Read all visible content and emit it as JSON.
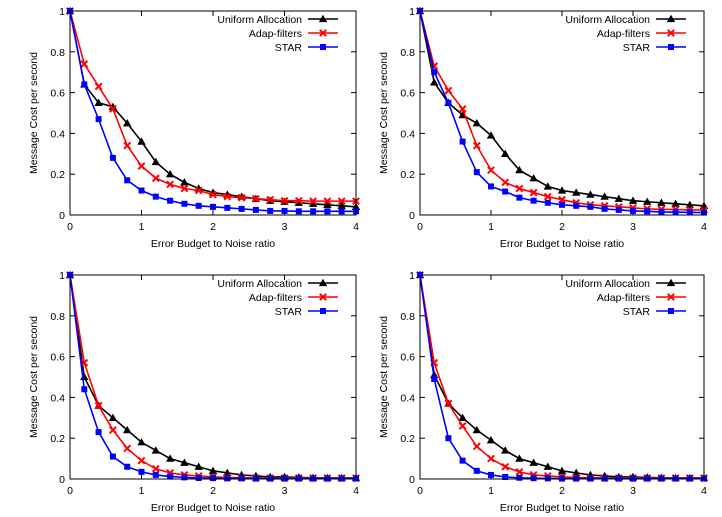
{
  "chart_data": [
    {
      "type": "line",
      "xlabel": "Error Budget to Noise ratio",
      "ylabel": "Message Cost per second",
      "xlim": [
        0,
        4
      ],
      "ylim": [
        0,
        1
      ],
      "xticks": [
        "0",
        "1",
        "2",
        "3",
        "4"
      ],
      "yticks": [
        "0",
        "0.2",
        "0.4",
        "0.6",
        "0.8",
        "1"
      ],
      "legend": "top-right",
      "x": [
        0,
        0.2,
        0.4,
        0.6,
        0.8,
        1.0,
        1.2,
        1.4,
        1.6,
        1.8,
        2.0,
        2.2,
        2.4,
        2.6,
        2.8,
        3.0,
        3.2,
        3.4,
        3.6,
        3.8,
        4.0
      ],
      "series": [
        {
          "name": "Uniform Allocation",
          "color": "#000000",
          "marker": "triangle",
          "values": [
            1,
            0.64,
            0.55,
            0.53,
            0.45,
            0.36,
            0.26,
            0.2,
            0.16,
            0.13,
            0.11,
            0.1,
            0.09,
            0.08,
            0.07,
            0.065,
            0.06,
            0.055,
            0.05,
            0.045,
            0.04
          ]
        },
        {
          "name": "Adap-filters",
          "color": "#ff0000",
          "marker": "x",
          "values": [
            1,
            0.74,
            0.63,
            0.52,
            0.34,
            0.24,
            0.18,
            0.15,
            0.13,
            0.12,
            0.1,
            0.09,
            0.085,
            0.08,
            0.075,
            0.07,
            0.07,
            0.068,
            0.068,
            0.068,
            0.068
          ]
        },
        {
          "name": "STAR",
          "color": "#0000ff",
          "marker": "square",
          "values": [
            1,
            0.64,
            0.47,
            0.28,
            0.17,
            0.12,
            0.09,
            0.07,
            0.055,
            0.045,
            0.04,
            0.035,
            0.03,
            0.025,
            0.02,
            0.02,
            0.018,
            0.018,
            0.018,
            0.018,
            0.018
          ]
        }
      ]
    },
    {
      "type": "line",
      "xlabel": "Error Budget to Noise ratio",
      "ylabel": "Message Cost per second",
      "xlim": [
        0,
        4
      ],
      "ylim": [
        0,
        1
      ],
      "xticks": [
        "0",
        "1",
        "2",
        "3",
        "4"
      ],
      "yticks": [
        "0",
        "0.2",
        "0.4",
        "0.6",
        "0.8",
        "1"
      ],
      "legend": "top-right",
      "x": [
        0,
        0.2,
        0.4,
        0.6,
        0.8,
        1.0,
        1.2,
        1.4,
        1.6,
        1.8,
        2.0,
        2.2,
        2.4,
        2.6,
        2.8,
        3.0,
        3.2,
        3.4,
        3.6,
        3.8,
        4.0
      ],
      "series": [
        {
          "name": "Uniform Allocation",
          "color": "#000000",
          "marker": "triangle",
          "values": [
            1,
            0.65,
            0.55,
            0.49,
            0.45,
            0.39,
            0.3,
            0.22,
            0.18,
            0.14,
            0.12,
            0.11,
            0.1,
            0.09,
            0.08,
            0.07,
            0.065,
            0.06,
            0.055,
            0.05,
            0.045
          ]
        },
        {
          "name": "Adap-filters",
          "color": "#ff0000",
          "marker": "x",
          "values": [
            1,
            0.73,
            0.61,
            0.52,
            0.34,
            0.22,
            0.16,
            0.13,
            0.11,
            0.09,
            0.075,
            0.06,
            0.05,
            0.045,
            0.04,
            0.035,
            0.03,
            0.028,
            0.027,
            0.025,
            0.025
          ]
        },
        {
          "name": "STAR",
          "color": "#0000ff",
          "marker": "square",
          "values": [
            1,
            0.7,
            0.55,
            0.36,
            0.21,
            0.14,
            0.115,
            0.085,
            0.07,
            0.06,
            0.05,
            0.045,
            0.04,
            0.03,
            0.025,
            0.02,
            0.018,
            0.015,
            0.014,
            0.013,
            0.012
          ]
        }
      ]
    },
    {
      "type": "line",
      "xlabel": "Error Budget to Noise ratio",
      "ylabel": "Message Cost per second",
      "xlim": [
        0,
        4
      ],
      "ylim": [
        0,
        1
      ],
      "xticks": [
        "0",
        "1",
        "2",
        "3",
        "4"
      ],
      "yticks": [
        "0",
        "0.2",
        "0.4",
        "0.6",
        "0.8",
        "1"
      ],
      "legend": "top-right",
      "x": [
        0,
        0.2,
        0.4,
        0.6,
        0.8,
        1.0,
        1.2,
        1.4,
        1.6,
        1.8,
        2.0,
        2.2,
        2.4,
        2.6,
        2.8,
        3.0,
        3.2,
        3.4,
        3.6,
        3.8,
        4.0
      ],
      "series": [
        {
          "name": "Uniform Allocation",
          "color": "#000000",
          "marker": "triangle",
          "values": [
            1,
            0.5,
            0.36,
            0.3,
            0.24,
            0.18,
            0.14,
            0.1,
            0.08,
            0.06,
            0.04,
            0.03,
            0.02,
            0.015,
            0.01,
            0.01,
            0.008,
            0.006,
            0.005,
            0.005,
            0.005
          ]
        },
        {
          "name": "Adap-filters",
          "color": "#ff0000",
          "marker": "x",
          "values": [
            1,
            0.57,
            0.36,
            0.24,
            0.15,
            0.09,
            0.05,
            0.03,
            0.02,
            0.015,
            0.01,
            0.008,
            0.006,
            0.005,
            0.005,
            0.005,
            0.005,
            0.005,
            0.005,
            0.005,
            0.005
          ]
        },
        {
          "name": "STAR",
          "color": "#0000ff",
          "marker": "square",
          "values": [
            1,
            0.44,
            0.23,
            0.11,
            0.06,
            0.035,
            0.02,
            0.012,
            0.008,
            0.005,
            0.004,
            0.003,
            0.003,
            0.002,
            0.002,
            0.002,
            0.002,
            0.002,
            0.002,
            0.002,
            0.002
          ]
        }
      ]
    },
    {
      "type": "line",
      "xlabel": "Error Budget to Noise ratio",
      "ylabel": "Message Cost per second",
      "xlim": [
        0,
        4
      ],
      "ylim": [
        0,
        1
      ],
      "xticks": [
        "0",
        "1",
        "2",
        "3",
        "4"
      ],
      "yticks": [
        "0",
        "0.2",
        "0.4",
        "0.6",
        "0.8",
        "1"
      ],
      "legend": "top-right",
      "x": [
        0,
        0.2,
        0.4,
        0.6,
        0.8,
        1.0,
        1.2,
        1.4,
        1.6,
        1.8,
        2.0,
        2.2,
        2.4,
        2.6,
        2.8,
        3.0,
        3.2,
        3.4,
        3.6,
        3.8,
        4.0
      ],
      "series": [
        {
          "name": "Uniform Allocation",
          "color": "#000000",
          "marker": "triangle",
          "values": [
            1,
            0.51,
            0.37,
            0.3,
            0.24,
            0.19,
            0.14,
            0.1,
            0.08,
            0.06,
            0.04,
            0.03,
            0.02,
            0.015,
            0.01,
            0.01,
            0.008,
            0.006,
            0.005,
            0.005,
            0.005
          ]
        },
        {
          "name": "Adap-filters",
          "color": "#ff0000",
          "marker": "x",
          "values": [
            1,
            0.57,
            0.37,
            0.26,
            0.16,
            0.1,
            0.06,
            0.035,
            0.02,
            0.015,
            0.01,
            0.008,
            0.006,
            0.005,
            0.005,
            0.005,
            0.005,
            0.005,
            0.005,
            0.005,
            0.005
          ]
        },
        {
          "name": "STAR",
          "color": "#0000ff",
          "marker": "square",
          "values": [
            1,
            0.49,
            0.2,
            0.09,
            0.04,
            0.02,
            0.01,
            0.006,
            0.004,
            0.003,
            0.002,
            0.002,
            0.002,
            0.002,
            0.002,
            0.002,
            0.002,
            0.002,
            0.002,
            0.002,
            0.002
          ]
        }
      ]
    }
  ]
}
